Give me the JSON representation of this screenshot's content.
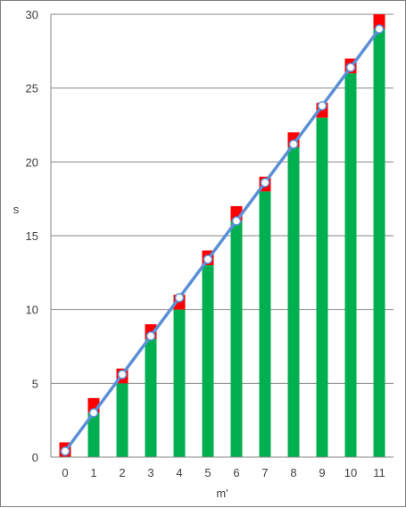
{
  "chart_data": {
    "type": "bar",
    "xlabel": "m'",
    "ylabel": "s",
    "ylim": [
      0,
      30
    ],
    "yticks": [
      0,
      5,
      10,
      15,
      20,
      25,
      30
    ],
    "grid": true,
    "categories": [
      "0",
      "1",
      "2",
      "3",
      "4",
      "5",
      "6",
      "7",
      "8",
      "9",
      "10",
      "11"
    ],
    "series": [
      {
        "kind": "bar",
        "color": "#00b050",
        "values": [
          0,
          3,
          5,
          8,
          10,
          13,
          16,
          18,
          21,
          23,
          26,
          29
        ]
      },
      {
        "kind": "bar-stacked",
        "color": "#ff0000",
        "values": [
          1,
          1,
          1,
          1,
          1,
          1,
          1,
          1,
          1,
          1,
          1,
          1
        ]
      },
      {
        "kind": "line",
        "color": "#5b8fd6",
        "marker": "circle-white",
        "values": [
          0.4,
          3.0,
          5.6,
          8.2,
          10.8,
          13.4,
          16.0,
          18.6,
          21.2,
          23.8,
          26.4,
          29.0
        ]
      }
    ]
  }
}
